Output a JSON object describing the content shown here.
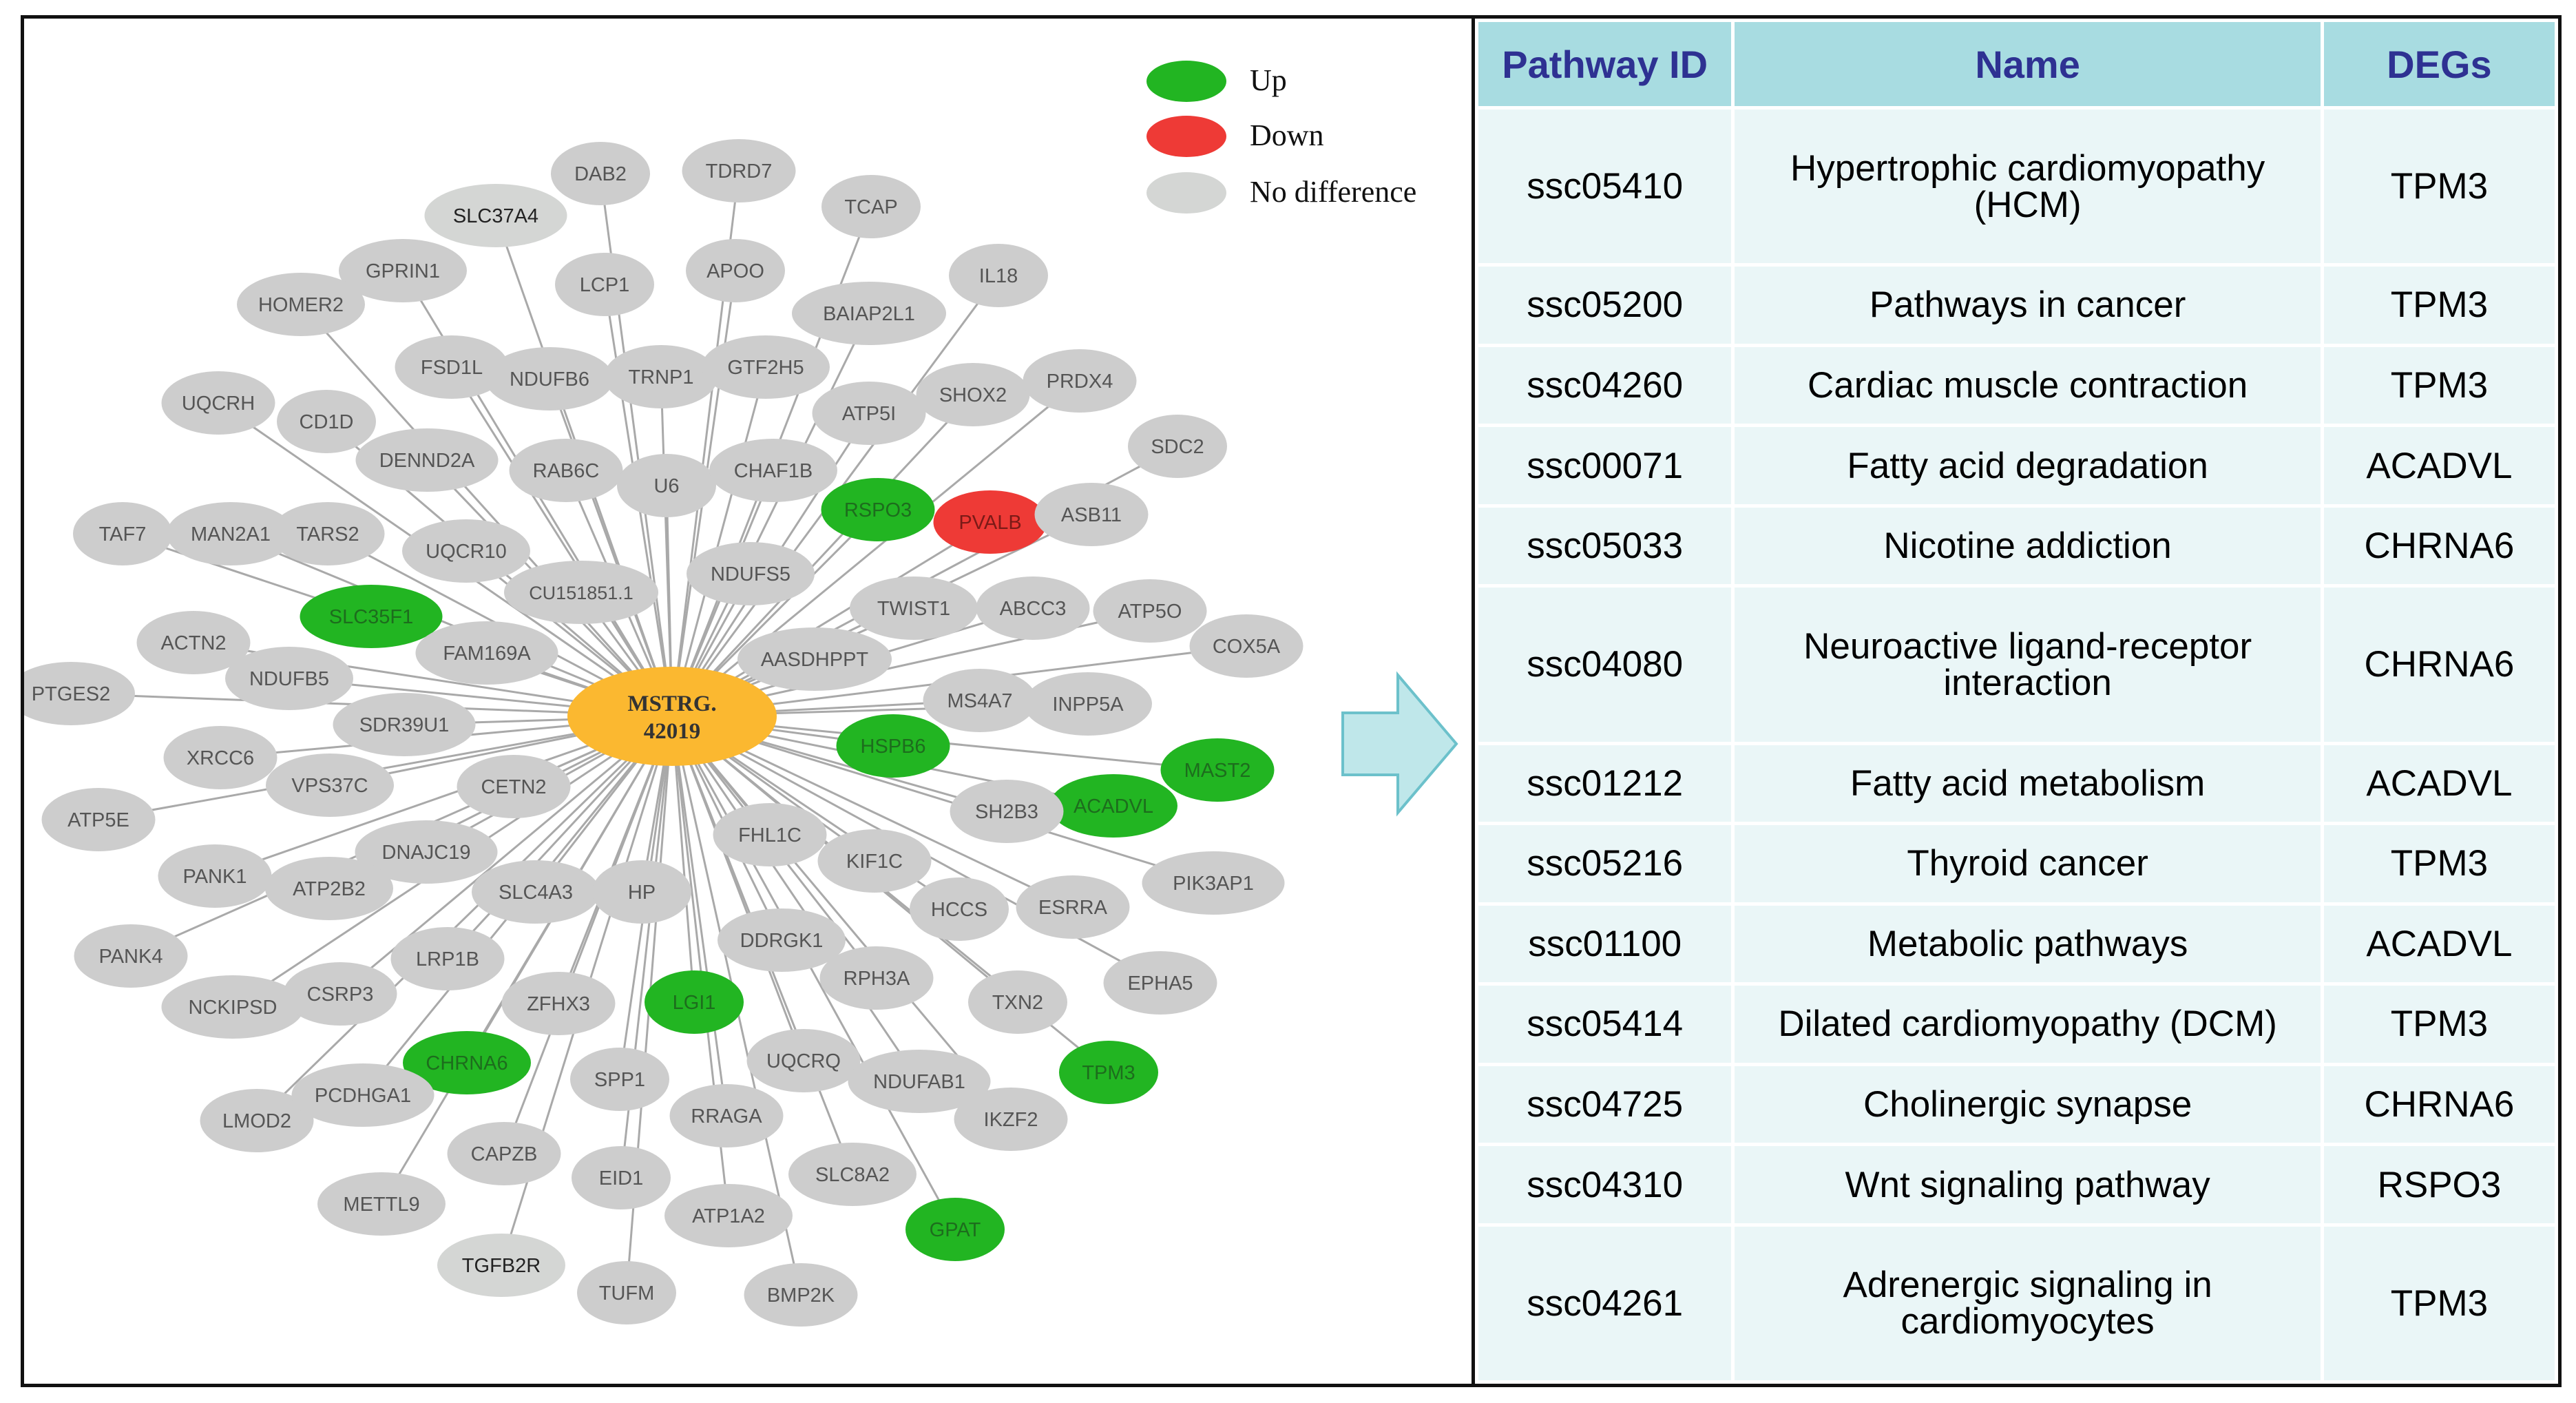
{
  "legend": [
    {
      "label": "Up",
      "color": "#22b522"
    },
    {
      "label": "Down",
      "color": "#ee3a36"
    },
    {
      "label": "No difference",
      "color": "#d4d6d4"
    }
  ],
  "network": {
    "center": {
      "label_line1": "MSTRG.",
      "label_line2": "42019",
      "color": "#fbb830"
    },
    "nodes": [
      {
        "label": "DAB2",
        "status": "none"
      },
      {
        "label": "TDRD7",
        "status": "none"
      },
      {
        "label": "SLC37A4",
        "status": "nodiff"
      },
      {
        "label": "TCAP",
        "status": "none"
      },
      {
        "label": "GPRIN1",
        "status": "none"
      },
      {
        "label": "LCP1",
        "status": "none"
      },
      {
        "label": "APOO",
        "status": "none"
      },
      {
        "label": "IL18",
        "status": "none"
      },
      {
        "label": "HOMER2",
        "status": "none"
      },
      {
        "label": "BAIAP2L1",
        "status": "none"
      },
      {
        "label": "FSD1L",
        "status": "none"
      },
      {
        "label": "NDUFB6",
        "status": "none"
      },
      {
        "label": "TRNP1",
        "status": "none"
      },
      {
        "label": "GTF2H5",
        "status": "none"
      },
      {
        "label": "UQCRH",
        "status": "none"
      },
      {
        "label": "SHOX2",
        "status": "none"
      },
      {
        "label": "PRDX4",
        "status": "none"
      },
      {
        "label": "CD1D",
        "status": "none"
      },
      {
        "label": "ATP5I",
        "status": "none"
      },
      {
        "label": "SDC2",
        "status": "none"
      },
      {
        "label": "DENND2A",
        "status": "none"
      },
      {
        "label": "RAB6C",
        "status": "none"
      },
      {
        "label": "U6",
        "status": "none"
      },
      {
        "label": "CHAF1B",
        "status": "none"
      },
      {
        "label": "RSPO3",
        "status": "up"
      },
      {
        "label": "PVALB",
        "status": "down"
      },
      {
        "label": "ASB11",
        "status": "none"
      },
      {
        "label": "TAF7",
        "status": "none"
      },
      {
        "label": "MAN2A1",
        "status": "none"
      },
      {
        "label": "TARS2",
        "status": "none"
      },
      {
        "label": "UQCR10",
        "status": "none"
      },
      {
        "label": "NDUFS5",
        "status": "none"
      },
      {
        "label": "CU151851.1",
        "status": "none"
      },
      {
        "label": "SLC35F1",
        "status": "up"
      },
      {
        "label": "TWIST1",
        "status": "none"
      },
      {
        "label": "ABCC3",
        "status": "none"
      },
      {
        "label": "ATP5O",
        "status": "none"
      },
      {
        "label": "ACTN2",
        "status": "none"
      },
      {
        "label": "FAM169A",
        "status": "none"
      },
      {
        "label": "COX5A",
        "status": "none"
      },
      {
        "label": "AASDHPPT",
        "status": "none"
      },
      {
        "label": "NDUFB5",
        "status": "none"
      },
      {
        "label": "PTGES2",
        "status": "none"
      },
      {
        "label": "MS4A7",
        "status": "none"
      },
      {
        "label": "INPP5A",
        "status": "none"
      },
      {
        "label": "SDR39U1",
        "status": "none"
      },
      {
        "label": "HSPB6",
        "status": "up"
      },
      {
        "label": "MAST2",
        "status": "up"
      },
      {
        "label": "XRCC6",
        "status": "none"
      },
      {
        "label": "VPS37C",
        "status": "none"
      },
      {
        "label": "CETN2",
        "status": "none"
      },
      {
        "label": "ACADVL",
        "status": "up"
      },
      {
        "label": "SH2B3",
        "status": "none"
      },
      {
        "label": "ATP5E",
        "status": "none"
      },
      {
        "label": "FHL1C",
        "status": "none"
      },
      {
        "label": "DNAJC19",
        "status": "none"
      },
      {
        "label": "KIF1C",
        "status": "none"
      },
      {
        "label": "PIK3AP1",
        "status": "none"
      },
      {
        "label": "PANK1",
        "status": "none"
      },
      {
        "label": "ATP2B2",
        "status": "none"
      },
      {
        "label": "SLC4A3",
        "status": "none"
      },
      {
        "label": "HP",
        "status": "none"
      },
      {
        "label": "HCCS",
        "status": "none"
      },
      {
        "label": "ESRRA",
        "status": "none"
      },
      {
        "label": "PANK4",
        "status": "none"
      },
      {
        "label": "LRP1B",
        "status": "none"
      },
      {
        "label": "DDRGK1",
        "status": "none"
      },
      {
        "label": "RPH3A",
        "status": "none"
      },
      {
        "label": "EPHA5",
        "status": "none"
      },
      {
        "label": "NCKIPSD",
        "status": "none"
      },
      {
        "label": "CSRP3",
        "status": "none"
      },
      {
        "label": "ZFHX3",
        "status": "none"
      },
      {
        "label": "LGI1",
        "status": "up"
      },
      {
        "label": "TXN2",
        "status": "none"
      },
      {
        "label": "CHRNA6",
        "status": "up"
      },
      {
        "label": "UQCRQ",
        "status": "none"
      },
      {
        "label": "TPM3",
        "status": "up"
      },
      {
        "label": "SPP1",
        "status": "none"
      },
      {
        "label": "NDUFAB1",
        "status": "none"
      },
      {
        "label": "LMOD2",
        "status": "none"
      },
      {
        "label": "PCDHGA1",
        "status": "none"
      },
      {
        "label": "RRAGA",
        "status": "none"
      },
      {
        "label": "IKZF2",
        "status": "none"
      },
      {
        "label": "CAPZB",
        "status": "none"
      },
      {
        "label": "EID1",
        "status": "none"
      },
      {
        "label": "SLC8A2",
        "status": "none"
      },
      {
        "label": "METTL9",
        "status": "none"
      },
      {
        "label": "ATP1A2",
        "status": "none"
      },
      {
        "label": "GPAT",
        "status": "up"
      },
      {
        "label": "TGFB2R",
        "status": "nodiff"
      },
      {
        "label": "TUFM",
        "status": "none"
      },
      {
        "label": "BMP2K",
        "status": "none"
      }
    ]
  },
  "table": {
    "headers": [
      "Pathway ID",
      "Name",
      "DEGs"
    ],
    "rows": [
      {
        "id": "ssc05410",
        "name_line1": "Hypertrophic cardiomyopathy",
        "name_line2": "(HCM)",
        "deg": "TPM3"
      },
      {
        "id": "ssc05200",
        "name_line1": "Pathways in cancer",
        "name_line2": "",
        "deg": "TPM3"
      },
      {
        "id": "ssc04260",
        "name_line1": "Cardiac muscle contraction",
        "name_line2": "",
        "deg": "TPM3"
      },
      {
        "id": "ssc00071",
        "name_line1": "Fatty acid degradation",
        "name_line2": "",
        "deg": "ACADVL"
      },
      {
        "id": "ssc05033",
        "name_line1": "Nicotine addiction",
        "name_line2": "",
        "deg": "CHRNA6"
      },
      {
        "id": "ssc04080",
        "name_line1": "Neuroactive ligand-receptor",
        "name_line2": "interaction",
        "deg": "CHRNA6"
      },
      {
        "id": "ssc01212",
        "name_line1": "Fatty acid metabolism",
        "name_line2": "",
        "deg": "ACADVL"
      },
      {
        "id": "ssc05216",
        "name_line1": "Thyroid cancer",
        "name_line2": "",
        "deg": "TPM3"
      },
      {
        "id": "ssc01100",
        "name_line1": "Metabolic pathways",
        "name_line2": "",
        "deg": "ACADVL"
      },
      {
        "id": "ssc05414",
        "name_line1": "Dilated cardiomyopathy (DCM)",
        "name_line2": "",
        "deg": "TPM3"
      },
      {
        "id": "ssc04725",
        "name_line1": "Cholinergic synapse",
        "name_line2": "",
        "deg": "CHRNA6"
      },
      {
        "id": "ssc04310",
        "name_line1": "Wnt signaling pathway",
        "name_line2": "",
        "deg": "RSPO3"
      },
      {
        "id": "ssc04261",
        "name_line1": "Adrenergic signaling in",
        "name_line2": "cardiomyocytes",
        "deg": "TPM3"
      }
    ]
  }
}
